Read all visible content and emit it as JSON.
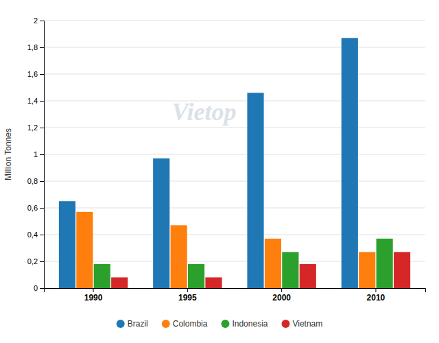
{
  "chart_data": {
    "type": "bar",
    "y_label": "Million Tonnes",
    "categories": [
      "1990",
      "1995",
      "2000",
      "2010"
    ],
    "series": [
      {
        "name": "Brazil",
        "values": [
          0.65,
          0.97,
          1.46,
          1.87
        ]
      },
      {
        "name": "Colombia",
        "values": [
          0.57,
          0.47,
          0.37,
          0.27
        ]
      },
      {
        "name": "Indonesia",
        "values": [
          0.18,
          0.18,
          0.27,
          0.37
        ]
      },
      {
        "name": "Vietnam",
        "values": [
          0.08,
          0.08,
          0.18,
          0.27
        ]
      }
    ],
    "ylim": [
      0,
      2.0
    ],
    "yticks": [
      0,
      {
        "value": 0.2,
        "label": "0,2"
      },
      {
        "value": 0.4,
        "label": "0,4"
      },
      {
        "value": 0.6,
        "label": "0,6"
      },
      {
        "value": 0.8,
        "label": "0,8"
      },
      1,
      {
        "value": 1.2,
        "label": "1,2"
      },
      {
        "value": 1.4,
        "label": "1,4"
      },
      {
        "value": 1.6,
        "label": "1,6"
      },
      {
        "value": 1.8,
        "label": "1,8"
      },
      2
    ],
    "grid": true,
    "legend": "bottom",
    "annotations": [
      {
        "text": "Vietop"
      }
    ]
  }
}
